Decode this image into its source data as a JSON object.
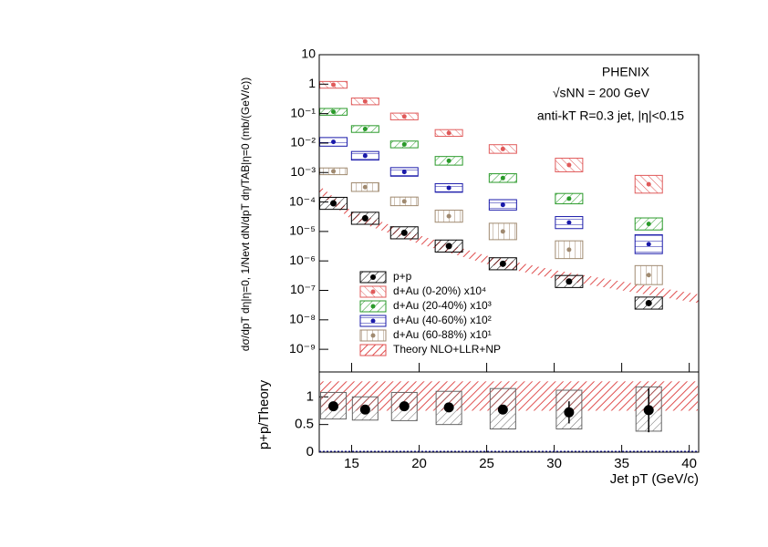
{
  "chart_data": [
    {
      "type": "scatter",
      "log_y": true,
      "annotations": [
        "PHENIX",
        "√sNN = 200 GeV",
        "anti-kT R=0.3 jet, |η|<0.15"
      ],
      "y_label": "dσ/dpT dη|η=0, 1/Nevt dN/dpT dη/TAB|η=0 (mb/(GeV/c))",
      "xlim": [
        12.6,
        40.7
      ],
      "ylim": [
        1.7e-10,
        10
      ],
      "yticks": [
        10,
        1,
        {
          "value": 0.1,
          "label": "10⁻¹"
        },
        {
          "value": 0.01,
          "label": "10⁻²"
        },
        {
          "value": 0.001,
          "label": "10⁻³"
        },
        {
          "value": 0.0001,
          "label": "10⁻⁴"
        },
        {
          "value": 1e-05,
          "label": "10⁻⁵"
        },
        {
          "value": 1e-06,
          "label": "10⁻⁶"
        },
        {
          "value": 1e-07,
          "label": "10⁻⁷"
        },
        {
          "value": 1e-08,
          "label": "10⁻⁸"
        },
        {
          "value": 1e-09,
          "label": "10⁻⁹"
        }
      ],
      "x": [
        13.65,
        16.0,
        18.9,
        22.2,
        26.2,
        31.1,
        37.0
      ],
      "series": [
        {
          "name": "p+p",
          "color": "#000000",
          "values": [
            9e-05,
            2.8e-05,
            9e-06,
            3.2e-06,
            8e-07,
            2e-07,
            3.7e-08
          ],
          "sys_factor": [
            1.6,
            1.6,
            1.6,
            1.6,
            1.6,
            1.6,
            1.6
          ]
        },
        {
          "name": "d+Au (0-20%) x10⁴",
          "color": "#e05a5a",
          "values": [
            0.95,
            0.26,
            0.08,
            0.022,
            0.0063,
            0.0018,
            0.0004
          ],
          "sys_factor": [
            1.3,
            1.3,
            1.3,
            1.3,
            1.4,
            1.7,
            2.0
          ]
        },
        {
          "name": "d+Au (20-40%) x10³",
          "color": "#2a9a2a",
          "values": [
            0.115,
            0.03,
            0.009,
            0.0025,
            0.00065,
            0.00013,
            1.8e-05
          ],
          "sys_factor": [
            1.3,
            1.3,
            1.3,
            1.4,
            1.4,
            1.5,
            1.6
          ]
        },
        {
          "name": "d+Au (40-60%) x10²",
          "color": "#1a1aaa",
          "values": [
            0.011,
            0.0037,
            0.00105,
            0.0003,
            8e-05,
            2e-05,
            3.7e-06
          ],
          "sys_factor": [
            1.4,
            1.4,
            1.4,
            1.4,
            1.5,
            1.6,
            2.1
          ]
        },
        {
          "name": "d+Au (60-88%) x10¹",
          "color": "#a08a70",
          "values": [
            0.0011,
            0.00032,
            0.000105,
            3.3e-05,
            1e-05,
            2.4e-06,
            3.3e-07
          ],
          "sys_factor": [
            1.3,
            1.4,
            1.4,
            1.6,
            1.9,
            2.0,
            2.1
          ]
        }
      ],
      "theory": {
        "name": "Theory NLO+LLR+NP",
        "color": "#e05050",
        "x": [
          12.6,
          15,
          20,
          25,
          30,
          35,
          40.7
        ],
        "lower": [
          0.00019,
          2.5e-05,
          3.8e-06,
          7.9e-07,
          2.5e-07,
          1e-07,
          3.7e-08
        ],
        "upper": [
          0.00036,
          4.9e-05,
          7.4e-06,
          1.5e-06,
          4.9e-07,
          2e-07,
          7.3e-08
        ]
      },
      "legend": "bottom-left"
    },
    {
      "type": "scatter",
      "y_label": "p+p/Theory",
      "x_label": "Jet pT (GeV/c)",
      "xlim": [
        12.6,
        40.7
      ],
      "xticks": [
        15,
        20,
        25,
        30,
        35,
        40
      ],
      "ylim": [
        0,
        1.45
      ],
      "yticks": [
        0,
        0.5,
        1
      ],
      "x": [
        13.65,
        16.0,
        18.9,
        22.2,
        26.2,
        31.1,
        37.0
      ],
      "values": [
        0.83,
        0.77,
        0.83,
        0.81,
        0.77,
        0.72,
        0.76
      ],
      "errors": [
        0.05,
        0.05,
        0.04,
        0.05,
        0.06,
        0.2,
        0.4
      ],
      "sys_low": [
        0.6,
        0.58,
        0.57,
        0.5,
        0.42,
        0.42,
        0.38
      ],
      "sys_high": [
        1.08,
        1.0,
        1.08,
        1.1,
        1.15,
        1.12,
        1.18
      ],
      "theory_band": [
        0.75,
        1.28
      ]
    }
  ]
}
